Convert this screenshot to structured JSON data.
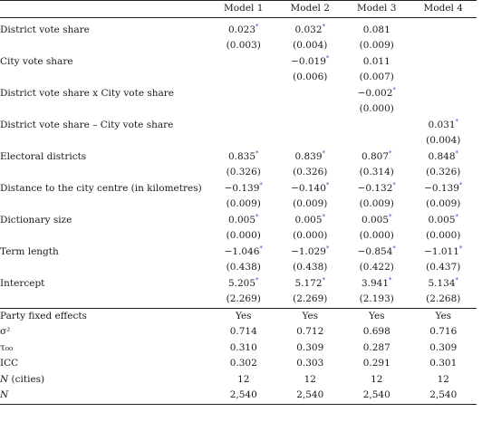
{
  "headers": [
    "",
    "Model 1",
    "Model 2",
    "Model 3",
    "Model 4"
  ],
  "coef_rows": [
    {
      "label": "District vote share",
      "coef": [
        "0.023*",
        "0.032*",
        "0.081",
        ""
      ],
      "se": [
        "(0.003)",
        "(0.004)",
        "(0.009)",
        ""
      ]
    },
    {
      "label": "City vote share",
      "coef": [
        "",
        "−0.019*",
        "0.011",
        ""
      ],
      "se": [
        "",
        "(0.006)",
        "(0.007)",
        ""
      ]
    },
    {
      "label": "District vote share x City vote share",
      "coef": [
        "",
        "",
        "−0.002*",
        ""
      ],
      "se": [
        "",
        "",
        "(0.000)",
        ""
      ]
    },
    {
      "label": "District vote share – City vote share",
      "coef": [
        "",
        "",
        "",
        "0.031*"
      ],
      "se": [
        "",
        "",
        "",
        "(0.004)"
      ]
    },
    {
      "label": "Electoral districts",
      "coef": [
        "0.835*",
        "0.839*",
        "0.807*",
        "0.848*"
      ],
      "se": [
        "(0.326)",
        "(0.326)",
        "(0.314)",
        "(0.326)"
      ]
    },
    {
      "label": "Distance to the city centre (in kilometres)",
      "coef": [
        "−0.139*",
        "−0.140*",
        "−0.132*",
        "−0.139*"
      ],
      "se": [
        "(0.009)",
        "(0.009)",
        "(0.009)",
        "(0.009)"
      ]
    },
    {
      "label": "Dictionary size",
      "coef": [
        "0.005*",
        "0.005*",
        "0.005*",
        "0.005*"
      ],
      "se": [
        "(0.000)",
        "(0.000)",
        "(0.000)",
        "(0.000)"
      ]
    },
    {
      "label": "Term length",
      "coef": [
        "−1.046*",
        "−1.029*",
        "−0.854*",
        "−1.011*"
      ],
      "se": [
        "(0.438)",
        "(0.438)",
        "(0.422)",
        "(0.437)"
      ]
    },
    {
      "label": "Intercept",
      "coef": [
        "5.205*",
        "5.172*",
        "3.941*",
        "5.134*"
      ],
      "se": [
        "(2.269)",
        "(2.269)",
        "(2.193)",
        "(2.268)"
      ]
    }
  ],
  "stat_rows": [
    {
      "label": "Party fixed effects",
      "values": [
        "Yes",
        "Yes",
        "Yes",
        "Yes"
      ]
    },
    {
      "label": "σ²",
      "values": [
        "0.714",
        "0.712",
        "0.698",
        "0.716"
      ]
    },
    {
      "label": "τ₀₀",
      "values": [
        "0.310",
        "0.309",
        "0.287",
        "0.309"
      ]
    },
    {
      "label": "ICC",
      "values": [
        "0.302",
        "0.303",
        "0.291",
        "0.301"
      ]
    },
    {
      "label": "N (cities)",
      "values": [
        "12",
        "12",
        "12",
        "12"
      ]
    },
    {
      "label": "N",
      "values": [
        "2,540",
        "2,540",
        "2,540",
        "2,540"
      ]
    }
  ]
}
